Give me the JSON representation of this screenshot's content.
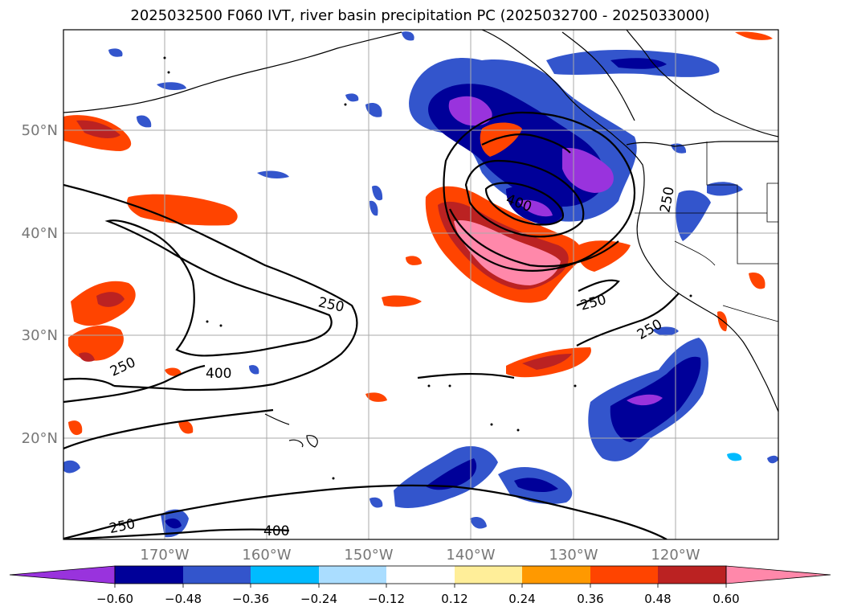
{
  "title": "2025032500 F060 IVT, river basin precipitation PC (2025032700 - 2025033000)",
  "lat_labels": [
    "50°N",
    "40°N",
    "30°N",
    "20°N"
  ],
  "lon_labels": [
    "170°W",
    "160°W",
    "150°W",
    "140°W",
    "130°W",
    "120°W"
  ],
  "contour_labels": [
    "250",
    "400",
    "250",
    "250",
    "400",
    "250",
    "250",
    "250",
    "400"
  ],
  "colorbar": {
    "colors": [
      "#9933dd",
      "#000099",
      "#3355cc",
      "#00bbff",
      "#aaddff",
      "#ffffff",
      "#ffee99",
      "#ff9900",
      "#ff4400",
      "#bb2222",
      "#ff88aa"
    ],
    "tick_labels": [
      "−0.60",
      "−0.48",
      "−0.36",
      "−0.24",
      "−0.12",
      "0.12",
      "0.24",
      "0.36",
      "0.48",
      "0.60"
    ]
  },
  "colors": {
    "grid": "#aaaaaa",
    "axis_label": "#777777",
    "contour": "#000000"
  }
}
